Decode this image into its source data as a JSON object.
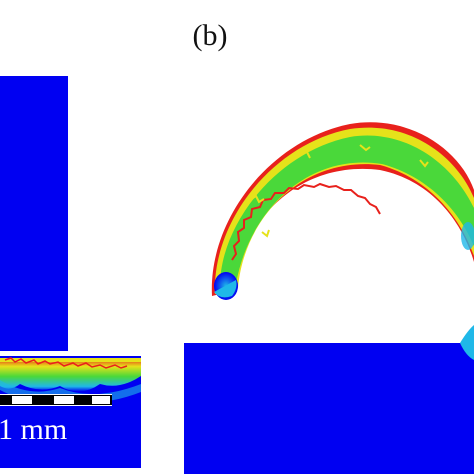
{
  "panel_b": {
    "label": "(b)"
  },
  "scale_bar": {
    "text": "1 mm"
  },
  "colors": {
    "background": "#ffffff",
    "substrate_blue": "#0000f2",
    "contour_green": "#4ad83a",
    "contour_yellow": "#e6e21a",
    "contour_red": "#e8211c",
    "contour_cyan": "#1fb8e8"
  }
}
